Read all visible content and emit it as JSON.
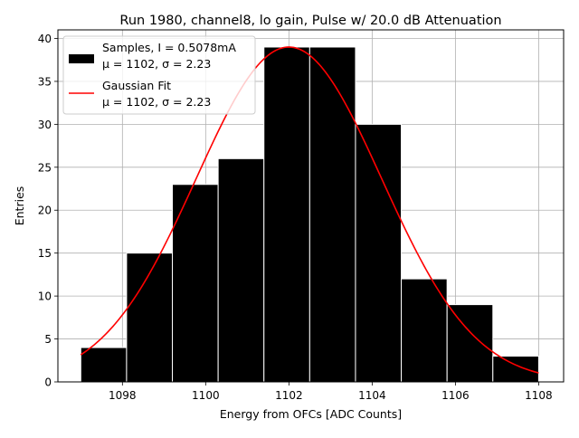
{
  "chart_data": {
    "type": "bar",
    "title": "Run 1980, channel8, lo gain, Pulse w/ 20.0 dB Attenuation",
    "xlabel": "Energy from OFCs [ADC Counts]",
    "ylabel": "Entries",
    "xlim": [
      1096.45,
      1108.6
    ],
    "ylim": [
      0,
      41
    ],
    "grid": true,
    "legend_position": "top-left",
    "xticks": [
      1098,
      1100,
      1102,
      1104,
      1106,
      1108
    ],
    "yticks": [
      0,
      5,
      10,
      15,
      20,
      25,
      30,
      35,
      40
    ],
    "histogram": {
      "name": "Samples, I = 0.5078mA",
      "stats_label": "μ = 1102, σ = 2.23",
      "bin_edges": [
        1097.0,
        1098.1,
        1099.2,
        1100.3,
        1101.4,
        1102.5,
        1103.6,
        1104.7,
        1105.8,
        1106.9,
        1108.0
      ],
      "counts": [
        4,
        15,
        23,
        26,
        39,
        39,
        30,
        12,
        9,
        3
      ],
      "color": "#000000"
    },
    "fit": {
      "name": "Gaussian Fit",
      "stats_label": "μ = 1102, σ = 2.23",
      "type": "gaussian",
      "amplitude": 39.0,
      "mean": 1102.0,
      "sigma": 2.23,
      "x_range": [
        1097.0,
        1108.0
      ],
      "color": "#ff0000"
    }
  }
}
